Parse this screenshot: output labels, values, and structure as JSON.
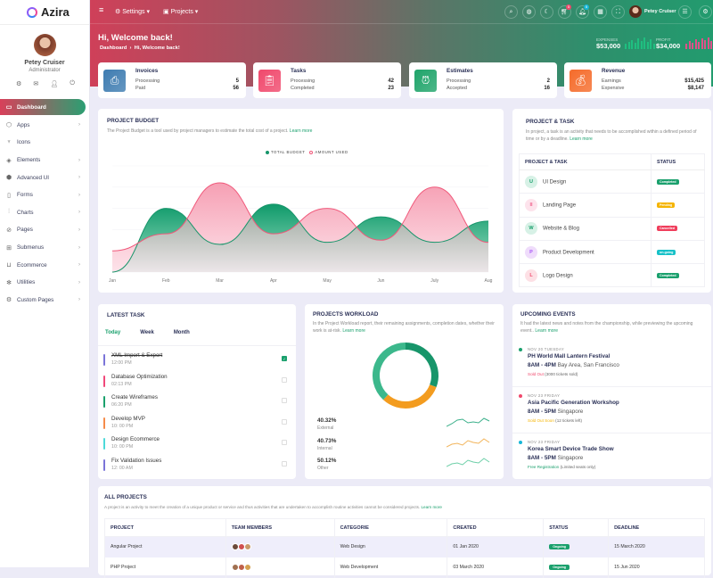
{
  "brand": {
    "name": "Azira"
  },
  "user": {
    "name": "Petey Cruiser",
    "role": "Administrator"
  },
  "sidebar": {
    "items": [
      {
        "label": "Dashboard",
        "icon": "monitor-icon",
        "active": true
      },
      {
        "label": "Apps",
        "icon": "cube-icon"
      },
      {
        "label": "Icons",
        "icon": "award-icon"
      },
      {
        "label": "Elements",
        "icon": "layers-icon"
      },
      {
        "label": "Advanced UI",
        "icon": "box-icon"
      },
      {
        "label": "Forms",
        "icon": "file-icon"
      },
      {
        "label": "Charts",
        "icon": "bar-chart-icon"
      },
      {
        "label": "Pages",
        "icon": "compass-icon"
      },
      {
        "label": "Submenus",
        "icon": "grid-icon"
      },
      {
        "label": "Ecommerce",
        "icon": "cart-icon"
      },
      {
        "label": "Utilities",
        "icon": "settings-icon"
      },
      {
        "label": "Custom Pages",
        "icon": "gear-icon"
      }
    ]
  },
  "topbar": {
    "settings": "Settings",
    "projects": "Projects",
    "cart_badge": "5",
    "bell_badge": "5",
    "user": "Petey Cruiser"
  },
  "hero": {
    "title": "Hi, Welcome back!",
    "breadcrumb": [
      "Dashboard",
      "Hi, Welcome back!"
    ],
    "expenses": {
      "label": "EXPENSES",
      "value": "$53,000",
      "color": "#1fbf80"
    },
    "profit": {
      "label": "PROFIT",
      "value": "$34,000",
      "color": "#e0508a"
    }
  },
  "stats": [
    {
      "title": "Invoices",
      "rows": [
        [
          "Processing",
          "5"
        ],
        [
          "Paid",
          "56"
        ]
      ],
      "color": "#3e7cb1"
    },
    {
      "title": "Tasks",
      "rows": [
        [
          "Processing",
          "42"
        ],
        [
          "Completed",
          "23"
        ]
      ],
      "color": "#f0486c"
    },
    {
      "title": "Estimates",
      "rows": [
        [
          "Processing",
          "2"
        ],
        [
          "Accepted",
          "16"
        ]
      ],
      "color": "#1fa46a"
    },
    {
      "title": "Revenue",
      "rows": [
        [
          "Earnings",
          "$15,425"
        ],
        [
          "Expensive",
          "$8,147"
        ]
      ],
      "color": "#f56b2a"
    }
  ],
  "budget": {
    "title": "PROJECT BUDGET",
    "desc": "The Project Budget is a tool used by project managers to estimate the total cost of a project.",
    "link": "Learn more"
  },
  "chart_data": {
    "type": "area",
    "x": [
      "Jan",
      "Feb",
      "Mar",
      "Apr",
      "May",
      "Jun",
      "July",
      "Aug"
    ],
    "ylim": [
      0,
      100
    ],
    "grid": true,
    "legend": "top-center",
    "series": [
      {
        "name": "TOTAL BUDGET",
        "values": [
          0,
          60,
          26,
          64,
          28,
          52,
          28,
          48
        ],
        "color": "#17956a"
      },
      {
        "name": "AMOUNT USED",
        "values": [
          20,
          36,
          84,
          36,
          60,
          30,
          80,
          28
        ],
        "color": "#f0587a"
      }
    ]
  },
  "project_task": {
    "title": "PROJECT & TASK",
    "desc": "In project, a task is an activity that needs to be accomplished within a defined period of time or by a deadline.",
    "link": "Learn more",
    "headers": [
      "PROJECT & TASK",
      "STATUS"
    ],
    "rows": [
      {
        "initial": "U",
        "name": "UI Design",
        "status": "Completed",
        "bg": "#d7f1e6",
        "fg": "#1aa06d",
        "sc": "#1aa06d"
      },
      {
        "initial": "II",
        "name": "Landing Page",
        "status": "Pending",
        "bg": "#fde3ec",
        "fg": "#f0628c",
        "sc": "#f5b400"
      },
      {
        "initial": "W",
        "name": "Website & Blog",
        "status": "Cancelled",
        "bg": "#d7f1e6",
        "fg": "#1aa06d",
        "sc": "#f03e5c"
      },
      {
        "initial": "P",
        "name": "Product Development",
        "status": "on-going",
        "bg": "#efdcfb",
        "fg": "#a855f7",
        "sc": "#17c1c8"
      },
      {
        "initial": "L",
        "name": "Logo Design",
        "status": "Completed",
        "bg": "#fde0e5",
        "fg": "#f0486c",
        "sc": "#1aa06d"
      }
    ]
  },
  "latest_task": {
    "title": "LATEST TASK",
    "tabs": [
      "Today",
      "Week",
      "Month"
    ],
    "items": [
      {
        "name": "XML Import & Export",
        "time": "12:00 PM",
        "color": "#7b74d8",
        "done": true
      },
      {
        "name": "Database Optimization",
        "time": "02:13 PM",
        "color": "#f0487a",
        "done": false
      },
      {
        "name": "Create Wireframes",
        "time": "06:20 PM",
        "color": "#1aa06d",
        "done": false
      },
      {
        "name": "Develop MVP",
        "time": "10: 00 PM",
        "color": "#f58b4a",
        "done": false
      },
      {
        "name": "Design Ecommerce",
        "time": "10: 00 PM",
        "color": "#4dd9d9",
        "done": false
      },
      {
        "name": "Fix Validation Issues",
        "time": "12: 00 AM",
        "color": "#7b74d8",
        "done": false
      }
    ]
  },
  "workload": {
    "title": "PROJECTS WORKLOAD",
    "desc": "In the Project Workload report, their remaining assignments, completion dates, whether their work is at-risk.",
    "link": "Learn more",
    "items": [
      {
        "pct": "40.32%",
        "label": "External",
        "value": 40.32,
        "color": "#17956a",
        "spark": "#3bb08a"
      },
      {
        "pct": "40.73%",
        "label": "Internal",
        "value": 40.73,
        "color": "#f39c1f",
        "spark": "#f2b45a"
      },
      {
        "pct": "50.12%",
        "label": "Other",
        "value": 50.12,
        "color": "#3cb88c",
        "spark": "#6dcfa8"
      }
    ]
  },
  "events": {
    "title": "UPCOMING EVENTS",
    "desc": "It had the latest news and notes from the championship, while previewing the upcoming event..",
    "link": "Learn more",
    "items": [
      {
        "date": "NOV 20 TUESDAY",
        "name": "PH World Mall Lantern Festival",
        "time": "8AM - 4PM",
        "place": "Bay Area, San Francisco",
        "tag": "Sold Out",
        "note": "(3000 tickets sold)",
        "color": "#1aa06d",
        "tagcolor": "#f0486c"
      },
      {
        "date": "NOV 23 FRIDAY",
        "name": "Asia Pacific Generation Workshop",
        "time": "8AM - 5PM",
        "place": "Singapore",
        "tag": "Sold Out Soon",
        "note": "(12 tickets left)",
        "color": "#f0486c",
        "tagcolor": "#f5b400"
      },
      {
        "date": "NOV 23 FRIDAY",
        "name": "Korea Smart Device Trade Show",
        "time": "8AM - 5PM",
        "place": "Singapore",
        "tag": "Free Registration",
        "note": "(Limited seats only)",
        "color": "#17b7d8",
        "tagcolor": "#1aa06d"
      }
    ]
  },
  "all_projects": {
    "title": "ALL PROJECTS",
    "desc": "A project is an activity to meet the creation of a unique product or service and thus activities that are undertaken to accomplish routine activities cannot be considered projects.",
    "link": "Learn more",
    "headers": [
      "PROJECT",
      "TEAM MEMBERS",
      "CATEGORIE",
      "CREATED",
      "STATUS",
      "DEADLINE"
    ],
    "rows": [
      {
        "project": "Angular Project",
        "category": "Web Design",
        "created": "01 Jan 2020",
        "status": "Ongoing",
        "deadline": "15 March 2020"
      },
      {
        "project": "PHP Project",
        "category": "Web Development",
        "created": "03 March 2020",
        "status": "Ongoing",
        "deadline": "15 Jun 2020"
      }
    ]
  }
}
